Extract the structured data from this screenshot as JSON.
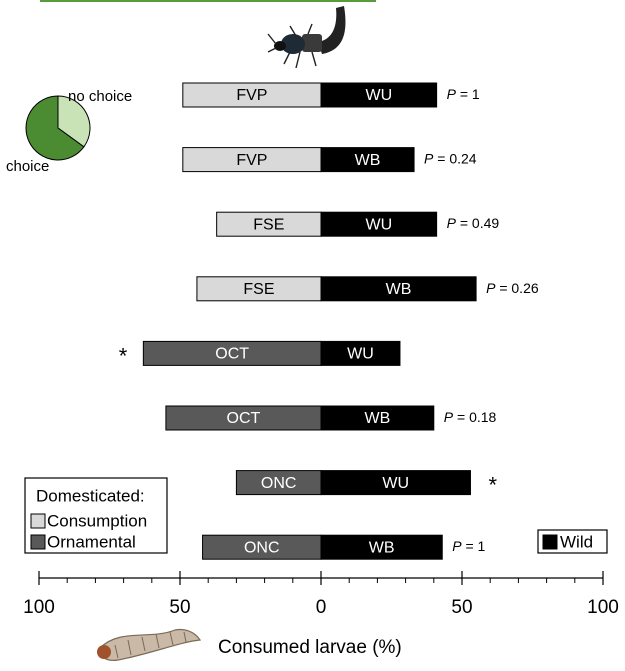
{
  "chart_data": [
    {
      "type": "diverging-bar",
      "xlabel": "Consumed larvae (%)",
      "xlim": [
        -100,
        100
      ],
      "xticks": [
        {
          "value": -100,
          "label": "100"
        },
        {
          "value": -50,
          "label": "50"
        },
        0,
        50,
        100
      ],
      "xminor": [
        -90,
        -80,
        -70,
        -60,
        -40,
        -30,
        -20,
        -10,
        10,
        20,
        30,
        40,
        60,
        70,
        80,
        90
      ],
      "left_categories": [
        "FVP",
        "FVP",
        "FSE",
        "FSE",
        "OCT",
        "OCT",
        "ONC",
        "ONC"
      ],
      "right_categories": [
        "WU",
        "WB",
        "WU",
        "WB",
        "WU",
        "WB",
        "WU",
        "WB"
      ],
      "series": [
        {
          "values": [
            49,
            49,
            37,
            44,
            63,
            55,
            30,
            42
          ],
          "colors": [
            "#d9d9d9",
            "#d9d9d9",
            "#d9d9d9",
            "#d9d9d9",
            "#595959",
            "#595959",
            "#595959",
            "#595959"
          ]
        },
        {
          "name": "Wild",
          "color": "#000000",
          "values": [
            41,
            33,
            41,
            55,
            28,
            40,
            53,
            43
          ]
        }
      ],
      "annotations": [
        {
          "row": 0,
          "side": "right",
          "italic": "P",
          "text": " = 1"
        },
        {
          "row": 1,
          "side": "right",
          "italic": "P",
          "text": " = 0.24"
        },
        {
          "row": 2,
          "side": "right",
          "italic": "P",
          "text": " = 0.49"
        },
        {
          "row": 3,
          "side": "right",
          "italic": "P",
          "text": " = 0.26"
        },
        {
          "row": 4,
          "side": "left",
          "text": "*"
        },
        {
          "row": 5,
          "side": "right",
          "italic": "P",
          "text": " = 0.18"
        },
        {
          "row": 6,
          "side": "right",
          "text": "*"
        },
        {
          "row": 7,
          "side": "right",
          "italic": "P",
          "text": " = 1"
        }
      ],
      "legend": {
        "title": "Domesticated:",
        "items": [
          {
            "name": "Consumption",
            "color": "#d9d9d9"
          },
          {
            "name": "Ornamental",
            "color": "#595959"
          }
        ]
      }
    },
    {
      "type": "pie",
      "categories": [
        "no choice",
        "choice"
      ],
      "values": [
        35,
        65
      ],
      "colors": [
        "#c9e3b6",
        "#4b8b32"
      ]
    }
  ]
}
